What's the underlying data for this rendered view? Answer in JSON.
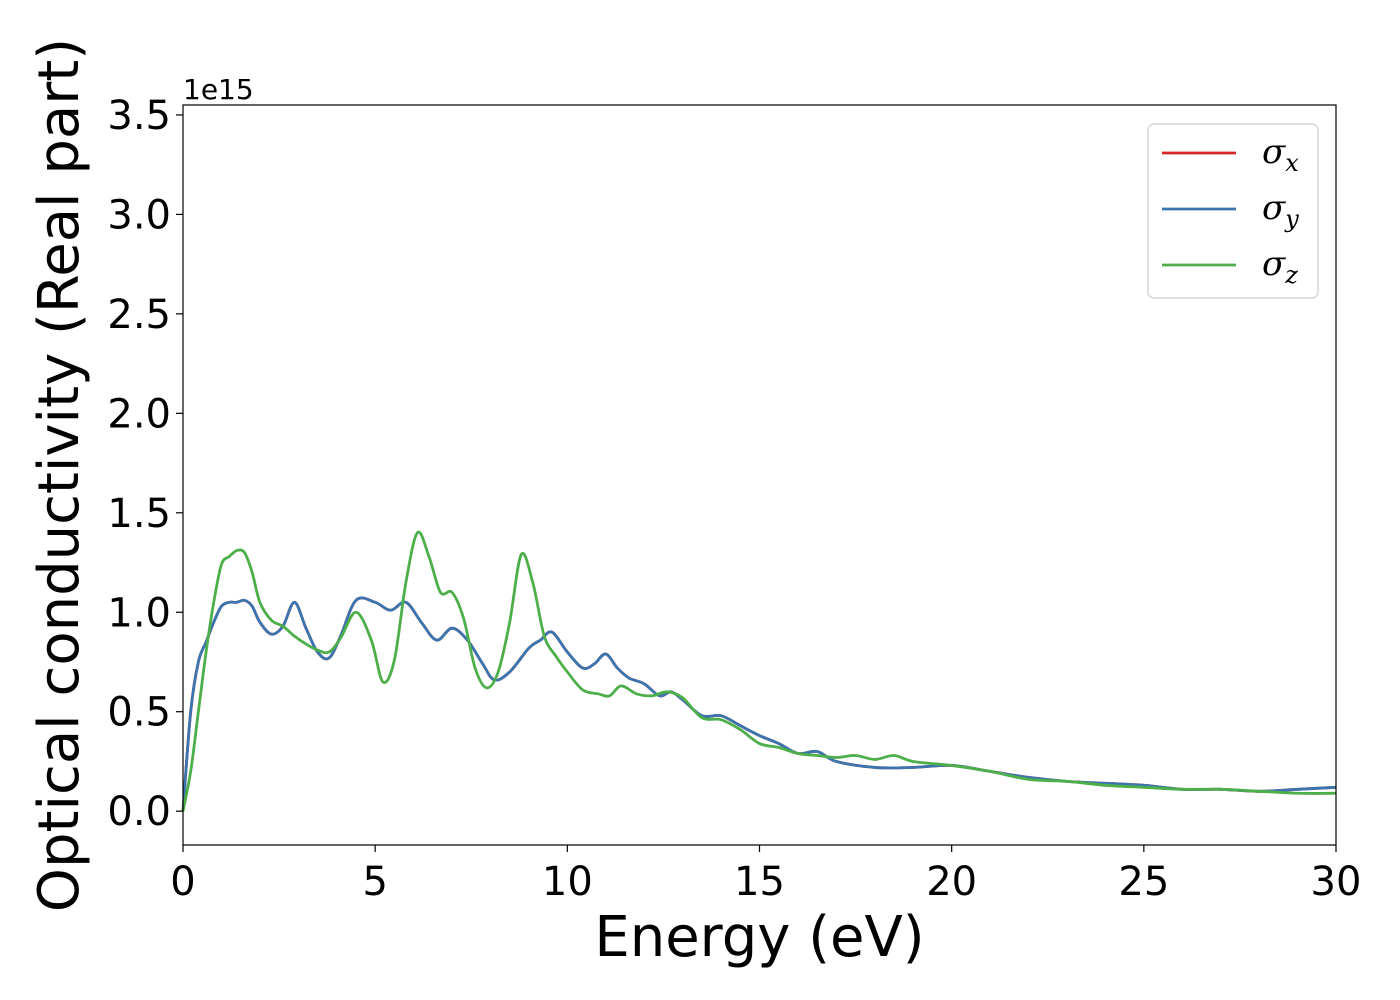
{
  "chart_data": {
    "type": "line",
    "title": "",
    "xlabel": "Energy (eV)",
    "ylabel": "Optical conductivity (Real part)",
    "y_offset_label": "1e15",
    "xlim": [
      0,
      30
    ],
    "ylim": [
      -0.17,
      3.55
    ],
    "xticks": [
      0,
      5,
      10,
      15,
      20,
      25,
      30
    ],
    "xtick_labels": [
      "0",
      "5",
      "10",
      "15",
      "20",
      "25",
      "30"
    ],
    "yticks": [
      0.0,
      0.5,
      1.0,
      1.5,
      2.0,
      2.5,
      3.0,
      3.5
    ],
    "ytick_labels": [
      "0.0",
      "0.5",
      "1.0",
      "1.5",
      "2.0",
      "2.5",
      "3.0",
      "3.5"
    ],
    "grid": false,
    "legend_position": "top-right",
    "series": [
      {
        "name": "σx",
        "legend_symbol": "σ",
        "legend_sub": "x",
        "color": "#d62728",
        "x": [
          0,
          0.2,
          0.4,
          0.6,
          0.8,
          1.0,
          1.2,
          1.4,
          1.6,
          1.8,
          2.0,
          2.3,
          2.6,
          2.9,
          3.2,
          3.5,
          3.8,
          4.1,
          4.5,
          5.0,
          5.4,
          5.8,
          6.2,
          6.6,
          7.0,
          7.4,
          7.8,
          8.1,
          8.5,
          9.0,
          9.3,
          9.6,
          10.0,
          10.4,
          10.7,
          11.0,
          11.3,
          11.6,
          12.0,
          12.4,
          12.7,
          13.0,
          13.5,
          14.0,
          14.5,
          15.0,
          15.5,
          16.0,
          16.5,
          17.0,
          18.0,
          19.0,
          20.0,
          21.0,
          22.0,
          23.0,
          24.0,
          25.0,
          26.0,
          27.0,
          28.0,
          29.0,
          30.0
        ],
        "y": [
          0.0,
          0.5,
          0.75,
          0.85,
          0.95,
          1.03,
          1.05,
          1.05,
          1.06,
          1.03,
          0.95,
          0.89,
          0.93,
          1.05,
          0.92,
          0.8,
          0.77,
          0.88,
          1.06,
          1.05,
          1.01,
          1.05,
          0.95,
          0.86,
          0.92,
          0.86,
          0.74,
          0.66,
          0.7,
          0.82,
          0.86,
          0.9,
          0.8,
          0.72,
          0.74,
          0.79,
          0.72,
          0.67,
          0.64,
          0.58,
          0.6,
          0.56,
          0.48,
          0.48,
          0.43,
          0.38,
          0.34,
          0.29,
          0.3,
          0.25,
          0.22,
          0.22,
          0.23,
          0.2,
          0.17,
          0.15,
          0.14,
          0.13,
          0.11,
          0.11,
          0.1,
          0.11,
          0.12
        ]
      },
      {
        "name": "σy",
        "legend_symbol": "σ",
        "legend_sub": "y",
        "color": "#3b75af",
        "x": [
          0,
          0.2,
          0.4,
          0.6,
          0.8,
          1.0,
          1.2,
          1.4,
          1.6,
          1.8,
          2.0,
          2.3,
          2.6,
          2.9,
          3.2,
          3.5,
          3.8,
          4.1,
          4.5,
          5.0,
          5.4,
          5.8,
          6.2,
          6.6,
          7.0,
          7.4,
          7.8,
          8.1,
          8.5,
          9.0,
          9.3,
          9.6,
          10.0,
          10.4,
          10.7,
          11.0,
          11.3,
          11.6,
          12.0,
          12.4,
          12.7,
          13.0,
          13.5,
          14.0,
          14.5,
          15.0,
          15.5,
          16.0,
          16.5,
          17.0,
          18.0,
          19.0,
          20.0,
          21.0,
          22.0,
          23.0,
          24.0,
          25.0,
          26.0,
          27.0,
          28.0,
          29.0,
          30.0
        ],
        "y": [
          0.0,
          0.5,
          0.75,
          0.85,
          0.95,
          1.03,
          1.05,
          1.05,
          1.06,
          1.03,
          0.95,
          0.89,
          0.93,
          1.05,
          0.92,
          0.8,
          0.77,
          0.88,
          1.06,
          1.05,
          1.01,
          1.05,
          0.95,
          0.86,
          0.92,
          0.86,
          0.74,
          0.66,
          0.7,
          0.82,
          0.86,
          0.9,
          0.8,
          0.72,
          0.74,
          0.79,
          0.72,
          0.67,
          0.64,
          0.58,
          0.6,
          0.56,
          0.48,
          0.48,
          0.43,
          0.38,
          0.34,
          0.29,
          0.3,
          0.25,
          0.22,
          0.22,
          0.23,
          0.2,
          0.17,
          0.15,
          0.14,
          0.13,
          0.11,
          0.11,
          0.1,
          0.11,
          0.12
        ]
      },
      {
        "name": "σz",
        "legend_symbol": "σ",
        "legend_sub": "z",
        "color": "#4daf4a",
        "x": [
          0,
          0.2,
          0.4,
          0.6,
          0.8,
          1.0,
          1.2,
          1.4,
          1.6,
          1.8,
          2.0,
          2.3,
          2.6,
          2.9,
          3.2,
          3.5,
          3.8,
          4.1,
          4.5,
          4.9,
          5.2,
          5.5,
          5.8,
          6.1,
          6.4,
          6.7,
          7.0,
          7.3,
          7.6,
          7.9,
          8.2,
          8.5,
          8.8,
          9.1,
          9.4,
          9.7,
          10.0,
          10.4,
          10.8,
          11.1,
          11.4,
          11.8,
          12.2,
          12.6,
          13.0,
          13.5,
          14.0,
          14.5,
          15.0,
          15.5,
          16.0,
          16.5,
          17.0,
          17.5,
          18.0,
          18.5,
          19.0,
          20.0,
          21.0,
          22.0,
          23.0,
          24.0,
          25.0,
          26.0,
          27.0,
          28.0,
          29.0,
          30.0
        ],
        "y": [
          0.0,
          0.2,
          0.5,
          0.8,
          1.05,
          1.24,
          1.28,
          1.31,
          1.3,
          1.2,
          1.05,
          0.96,
          0.93,
          0.88,
          0.84,
          0.81,
          0.8,
          0.87,
          1.0,
          0.86,
          0.65,
          0.76,
          1.15,
          1.4,
          1.28,
          1.1,
          1.1,
          0.97,
          0.72,
          0.62,
          0.7,
          0.95,
          1.29,
          1.15,
          0.88,
          0.78,
          0.7,
          0.61,
          0.59,
          0.58,
          0.63,
          0.59,
          0.58,
          0.6,
          0.57,
          0.47,
          0.46,
          0.41,
          0.34,
          0.32,
          0.29,
          0.28,
          0.27,
          0.28,
          0.26,
          0.28,
          0.25,
          0.23,
          0.2,
          0.16,
          0.15,
          0.13,
          0.12,
          0.11,
          0.11,
          0.1,
          0.09,
          0.09
        ]
      }
    ]
  }
}
